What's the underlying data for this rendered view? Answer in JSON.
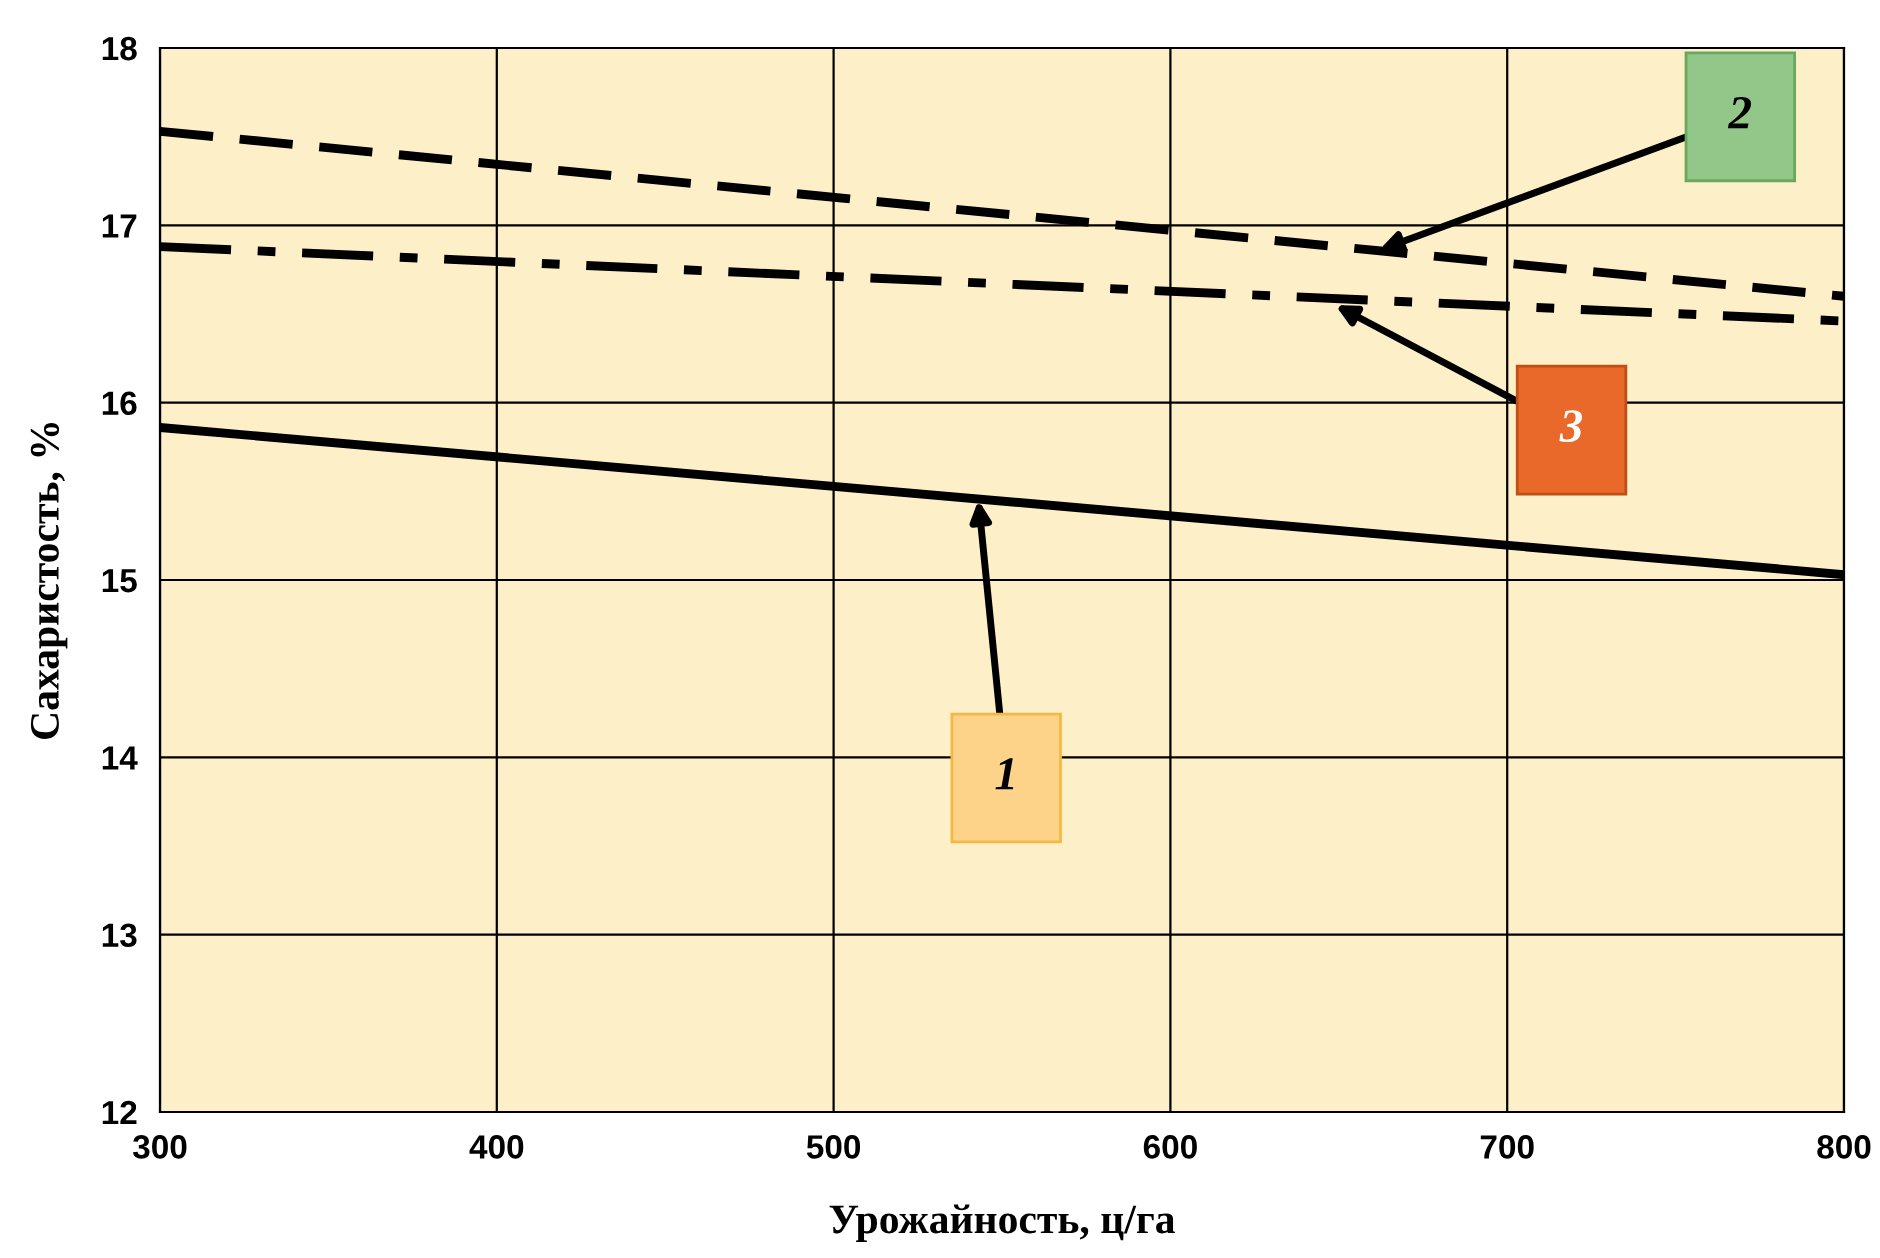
{
  "chart_data": {
    "type": "line",
    "xlabel": "Урожайность, ц/га",
    "ylabel": "Сахаристость, %",
    "x": [
      300,
      800
    ],
    "series": [
      {
        "color": "#000000",
        "line_style": "solid",
        "values": [
          15.86,
          15.03
        ]
      },
      {
        "color": "#000000",
        "line_style": "dashed",
        "values": [
          17.53,
          16.6
        ]
      },
      {
        "color": "#000000",
        "line_style": "dashdot",
        "values": [
          16.88,
          16.46
        ]
      }
    ],
    "annotations": [
      {
        "text": "1",
        "x": 543,
        "y": 15.45
      },
      {
        "text": "2",
        "x": 662,
        "y": 16.86
      },
      {
        "text": "3",
        "x": 649,
        "y": 16.55
      }
    ],
    "xlim": [
      300,
      800
    ],
    "ylim": [
      12,
      18
    ],
    "xticks": [
      300,
      400,
      500,
      600,
      700,
      800
    ],
    "yticks": [
      12,
      13,
      14,
      15,
      16,
      17,
      18
    ],
    "grid": true,
    "marker": "none"
  }
}
